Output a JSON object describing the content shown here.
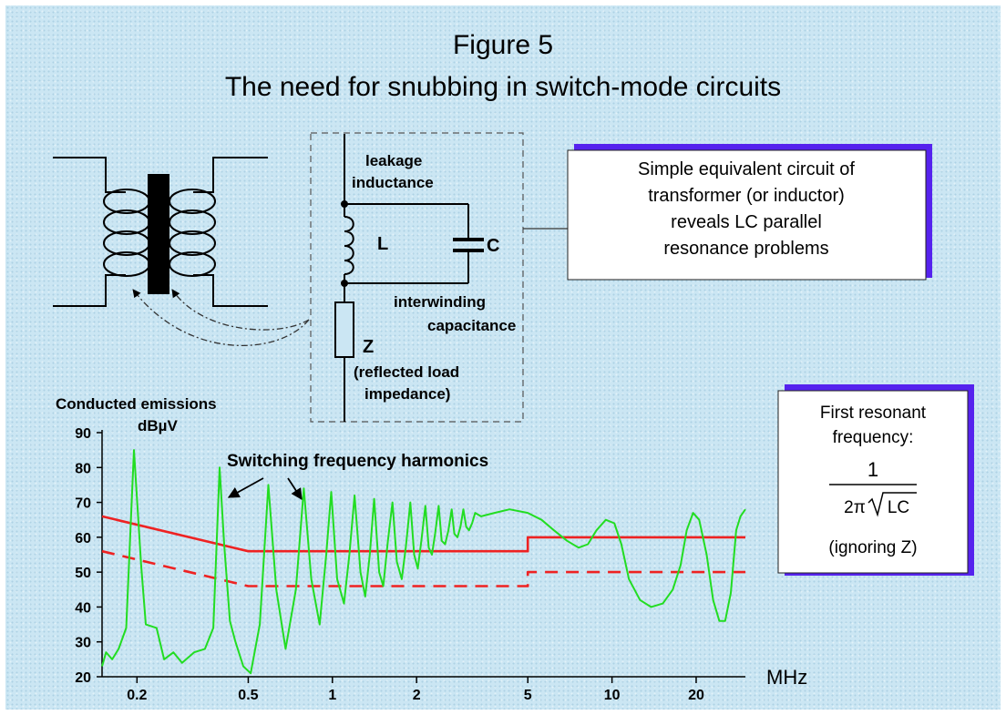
{
  "figure": {
    "number": "Figure 5",
    "title": "The need for snubbing in switch-mode circuits"
  },
  "circuit": {
    "leakage_label": [
      "leakage",
      "inductance"
    ],
    "inductor_label": "L",
    "capacitor_label": "C",
    "interwinding_label": [
      "interwinding",
      "capacitance"
    ],
    "load_label": "Z",
    "load_desc": [
      "(reflected load",
      "impedance)"
    ]
  },
  "callouts": {
    "equivalent_circuit": [
      "Simple equivalent circuit of",
      "transformer (or inductor)",
      "reveals LC parallel",
      "resonance problems"
    ],
    "resonance": {
      "lines": [
        "First resonant",
        "frequency:"
      ],
      "numerator": "1",
      "denominator_prefix": "2π",
      "denominator_radicand": "LC",
      "note": "(ignoring Z)"
    }
  },
  "colors": {
    "background": "#cbe6f3",
    "emissions": "#22dd22",
    "limits": "#ee2222",
    "callout_shadow": "#5522ee"
  },
  "chart_data": {
    "type": "line",
    "title": "",
    "ylabel_lines": [
      "Conducted emissions",
      "dBµV"
    ],
    "xlabel": "MHz",
    "x_scale": "log",
    "xlim": [
      0.15,
      30
    ],
    "ylim": [
      20,
      90
    ],
    "x_ticks": [
      0.2,
      0.5,
      1,
      2,
      5,
      10,
      20
    ],
    "x_tick_labels": [
      "0.2",
      "0.5",
      "1",
      "2",
      "5",
      "10",
      "20"
    ],
    "y_ticks": [
      20,
      30,
      40,
      50,
      60,
      70,
      80,
      90
    ],
    "y_tick_labels": [
      "20",
      "30",
      "40",
      "50",
      "60",
      "70",
      "80",
      "90"
    ],
    "annotation": "Switching frequency harmonics",
    "series": [
      {
        "style": "solid",
        "color": "#ee2222",
        "points": [
          [
            0.15,
            66
          ],
          [
            0.5,
            56
          ],
          [
            5,
            56
          ],
          [
            5,
            60
          ],
          [
            30,
            60
          ]
        ]
      },
      {
        "style": "dashed",
        "color": "#ee2222",
        "points": [
          [
            0.15,
            56
          ],
          [
            0.5,
            46
          ],
          [
            5,
            46
          ],
          [
            5,
            50
          ],
          [
            30,
            50
          ]
        ]
      },
      {
        "style": "solid",
        "color": "#22dd22",
        "points": [
          [
            0.15,
            23
          ],
          [
            0.155,
            27
          ],
          [
            0.163,
            25
          ],
          [
            0.172,
            28
          ],
          [
            0.183,
            34
          ],
          [
            0.195,
            85
          ],
          [
            0.207,
            52
          ],
          [
            0.215,
            35
          ],
          [
            0.235,
            34
          ],
          [
            0.25,
            25
          ],
          [
            0.27,
            27
          ],
          [
            0.29,
            24
          ],
          [
            0.32,
            27
          ],
          [
            0.35,
            28
          ],
          [
            0.375,
            34
          ],
          [
            0.395,
            80
          ],
          [
            0.41,
            58
          ],
          [
            0.43,
            36
          ],
          [
            0.45,
            30
          ],
          [
            0.48,
            23
          ],
          [
            0.51,
            21
          ],
          [
            0.55,
            35
          ],
          [
            0.59,
            75
          ],
          [
            0.63,
            45
          ],
          [
            0.68,
            28
          ],
          [
            0.74,
            45
          ],
          [
            0.79,
            74
          ],
          [
            0.84,
            48
          ],
          [
            0.9,
            35
          ],
          [
            0.95,
            55
          ],
          [
            0.99,
            73
          ],
          [
            1.04,
            48
          ],
          [
            1.1,
            41
          ],
          [
            1.15,
            55
          ],
          [
            1.2,
            72
          ],
          [
            1.26,
            50
          ],
          [
            1.31,
            43
          ],
          [
            1.36,
            55
          ],
          [
            1.41,
            71
          ],
          [
            1.47,
            50
          ],
          [
            1.52,
            46
          ],
          [
            1.58,
            59
          ],
          [
            1.64,
            70
          ],
          [
            1.7,
            53
          ],
          [
            1.77,
            48
          ],
          [
            1.83,
            57
          ],
          [
            1.9,
            70
          ],
          [
            1.96,
            55
          ],
          [
            2.02,
            51
          ],
          [
            2.08,
            59
          ],
          [
            2.15,
            69
          ],
          [
            2.21,
            57
          ],
          [
            2.27,
            55
          ],
          [
            2.33,
            61
          ],
          [
            2.4,
            69
          ],
          [
            2.46,
            59
          ],
          [
            2.53,
            58
          ],
          [
            2.6,
            62
          ],
          [
            2.67,
            68
          ],
          [
            2.73,
            61
          ],
          [
            2.8,
            60
          ],
          [
            2.87,
            63
          ],
          [
            2.94,
            68
          ],
          [
            3.01,
            63
          ],
          [
            3.08,
            62
          ],
          [
            3.16,
            64
          ],
          [
            3.24,
            67
          ],
          [
            3.4,
            66
          ],
          [
            3.8,
            67
          ],
          [
            4.3,
            68
          ],
          [
            5.0,
            67
          ],
          [
            5.6,
            65
          ],
          [
            6.2,
            62
          ],
          [
            6.9,
            59
          ],
          [
            7.6,
            57
          ],
          [
            8.2,
            58
          ],
          [
            8.8,
            62
          ],
          [
            9.5,
            65
          ],
          [
            10.2,
            64
          ],
          [
            10.8,
            58
          ],
          [
            11.5,
            48
          ],
          [
            12.6,
            42
          ],
          [
            13.8,
            40
          ],
          [
            15.2,
            41
          ],
          [
            16.5,
            45
          ],
          [
            17.6,
            52
          ],
          [
            18.5,
            62
          ],
          [
            19.5,
            67
          ],
          [
            20.5,
            65
          ],
          [
            21.8,
            55
          ],
          [
            23.0,
            42
          ],
          [
            24.2,
            36
          ],
          [
            25.4,
            36
          ],
          [
            26.6,
            44
          ],
          [
            27.8,
            62
          ],
          [
            28.8,
            66
          ],
          [
            30,
            68
          ]
        ]
      }
    ]
  }
}
